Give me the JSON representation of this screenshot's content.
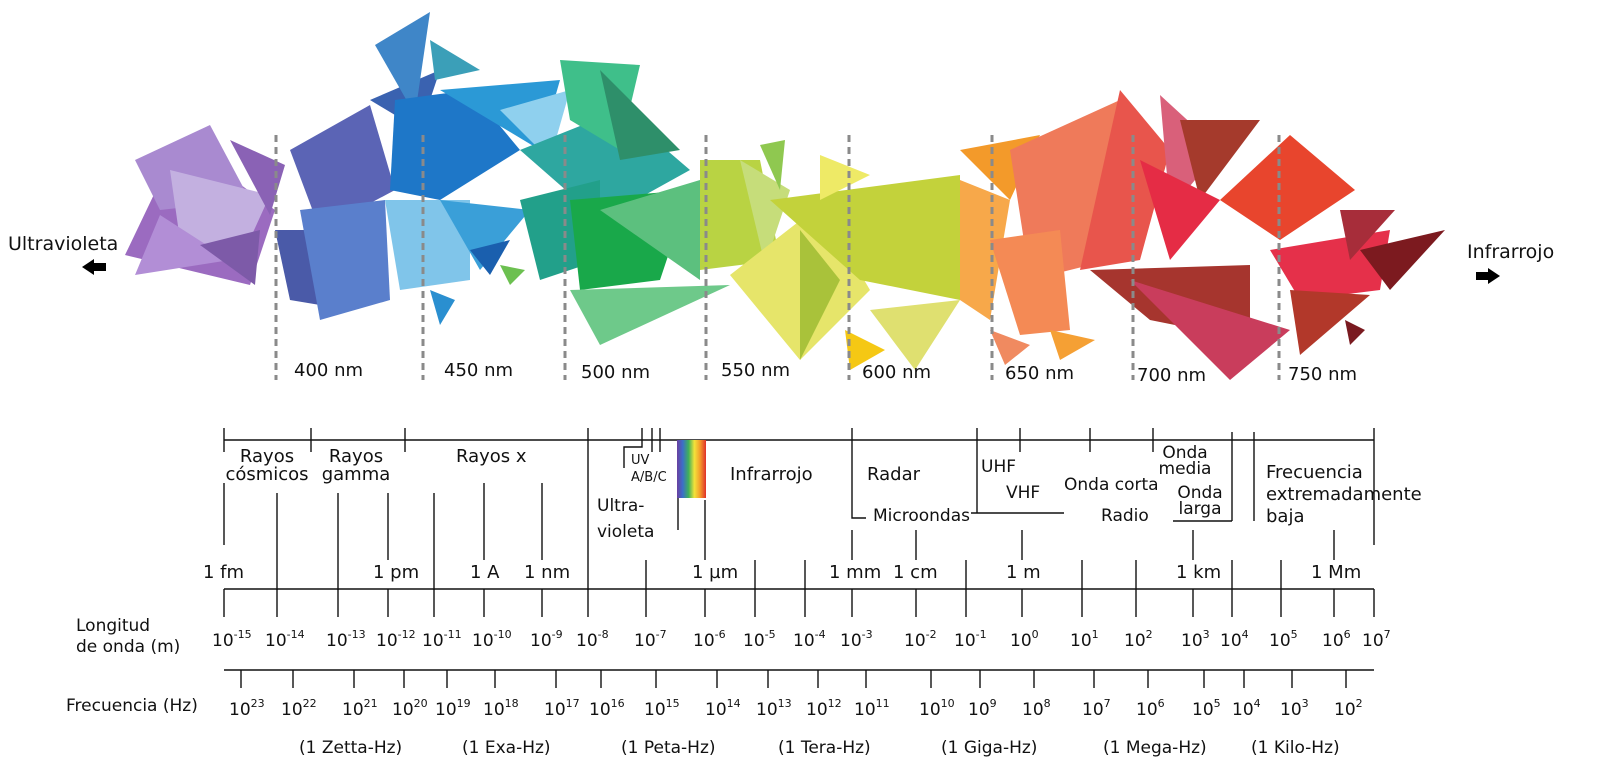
{
  "wave_labels": [
    "400 nm",
    "450 nm",
    "500 nm",
    "550 nm",
    "600 nm",
    "650 nm",
    "700 nm",
    "750 nm"
  ],
  "side_labels": {
    "left": "Ultravioleta",
    "right": "Infrarrojo"
  },
  "bands": {
    "cosmic_1": "Rayos",
    "cosmic_2": "cósmicos",
    "gamma_1": "Rayos",
    "gamma_2": "gamma",
    "xray": "Rayos x",
    "uv_1": "UV",
    "uv_2": "A/B/C",
    "ultra_1": "Ultra-",
    "ultra_2": "violeta",
    "infra": "Infrarrojo",
    "radar": "Radar",
    "microwave": "Microondas",
    "uhf": "UHF",
    "vhf": "VHF",
    "short": "Onda corta",
    "radio": "Radio",
    "medium_1": "Onda",
    "medium_2": "media",
    "long_1": "Onda",
    "long_2": "larga",
    "elf_1": "Frecuencia",
    "elf_2": "extremadamente",
    "elf_3": "baja"
  },
  "units": [
    "1 fm",
    "1 pm",
    "1 A",
    "1 nm",
    "1 µm",
    "1 mm",
    "1 cm",
    "1 m",
    "1 km",
    "1 Mm"
  ],
  "wavelength_label_1": "Longitud",
  "wavelength_label_2": "de onda (m)",
  "frequency_label": "Frecuencia (Hz)",
  "wavelength_exponents": [
    "-15",
    "-14",
    "-13",
    "-12",
    "-11",
    "-10",
    "-9",
    "-8",
    "-7",
    "-6",
    "-5",
    "-4",
    "-3",
    "-2",
    "-1",
    "0",
    "1",
    "2",
    "3",
    "4",
    "5",
    "6",
    "7"
  ],
  "frequency_exponents": [
    "23",
    "22",
    "21",
    "20",
    "19",
    "18",
    "17",
    "16",
    "15",
    "14",
    "13",
    "12",
    "11",
    "10",
    "9",
    "8",
    "7",
    "6",
    "5",
    "4",
    "3",
    "2"
  ],
  "prefixes": [
    "(1 Zetta-Hz)",
    "(1 Exa-Hz)",
    "(1 Peta-Hz)",
    "(1 Tera-Hz)",
    "(1 Giga-Hz)",
    "(1 Mega-Hz)",
    "(1 Kilo-Hz)"
  ],
  "colors": {
    "ink": "#111111",
    "dash": "#8a8a8a"
  }
}
